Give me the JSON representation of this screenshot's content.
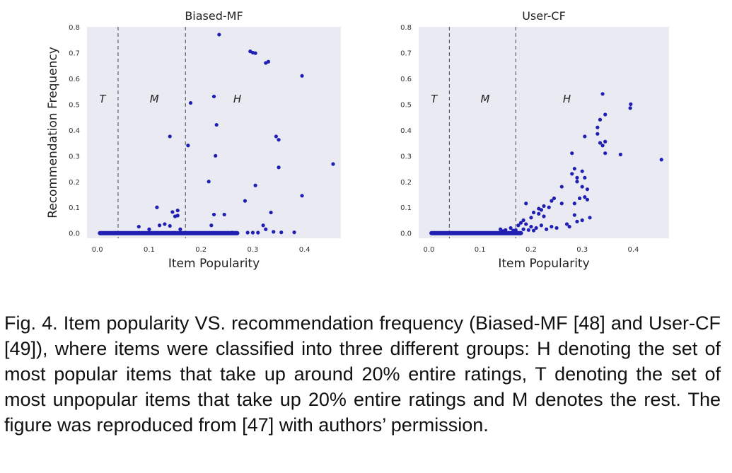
{
  "chart_data": [
    {
      "type": "scatter",
      "title": "Biased-MF",
      "xlabel": "Item Popularity",
      "ylabel": "Recommendation Frequency",
      "xlim": [
        -0.02,
        0.47
      ],
      "ylim": [
        -0.02,
        0.8
      ],
      "xticks": [
        "0.0",
        "0.1",
        "0.2",
        "0.3",
        "0.4"
      ],
      "yticks": [
        "0.0",
        "0.1",
        "0.2",
        "0.3",
        "0.4",
        "0.5",
        "0.6",
        "0.7",
        "0.8"
      ],
      "grid": false,
      "dividers_x": [
        0.04,
        0.17
      ],
      "regions": [
        {
          "label": "T",
          "x": 0.01,
          "y": 0.52
        },
        {
          "label": "M",
          "x": 0.11,
          "y": 0.52
        },
        {
          "label": "H",
          "x": 0.27,
          "y": 0.52
        }
      ],
      "marker_color": "#1f1fb4",
      "points": [
        [
          0.235,
          0.77
        ],
        [
          0.295,
          0.705
        ],
        [
          0.3,
          0.7
        ],
        [
          0.305,
          0.698
        ],
        [
          0.325,
          0.66
        ],
        [
          0.33,
          0.665
        ],
        [
          0.395,
          0.61
        ],
        [
          0.18,
          0.505
        ],
        [
          0.225,
          0.53
        ],
        [
          0.23,
          0.42
        ],
        [
          0.14,
          0.375
        ],
        [
          0.345,
          0.375
        ],
        [
          0.35,
          0.362
        ],
        [
          0.175,
          0.34
        ],
        [
          0.228,
          0.3
        ],
        [
          0.455,
          0.268
        ],
        [
          0.35,
          0.255
        ],
        [
          0.215,
          0.2
        ],
        [
          0.305,
          0.185
        ],
        [
          0.395,
          0.145
        ],
        [
          0.285,
          0.125
        ],
        [
          0.115,
          0.1
        ],
        [
          0.145,
          0.082
        ],
        [
          0.155,
          0.088
        ],
        [
          0.15,
          0.065
        ],
        [
          0.155,
          0.068
        ],
        [
          0.225,
          0.072
        ],
        [
          0.245,
          0.072
        ],
        [
          0.335,
          0.08
        ],
        [
          0.22,
          0.03
        ],
        [
          0.32,
          0.03
        ],
        [
          0.08,
          0.025
        ],
        [
          0.12,
          0.03
        ],
        [
          0.13,
          0.035
        ],
        [
          0.14,
          0.028
        ],
        [
          0.1,
          0.015
        ],
        [
          0.16,
          0.015
        ],
        [
          0.325,
          0.015
        ],
        [
          0.34,
          0.005
        ],
        [
          0.355,
          0.003
        ],
        [
          0.38,
          0.003
        ],
        [
          0.26,
          0.002
        ],
        [
          0.29,
          0.002
        ],
        [
          0.3,
          0.002
        ],
        [
          0.31,
          0.002
        ]
      ],
      "baseline_run": [
        0.005,
        0.27,
        0.0
      ]
    },
    {
      "type": "scatter",
      "title": "User-CF",
      "xlabel": "Item Popularity",
      "ylabel": "",
      "xlim": [
        -0.02,
        0.47
      ],
      "ylim": [
        -0.02,
        0.8
      ],
      "xticks": [
        "0.0",
        "0.1",
        "0.2",
        "0.3",
        "0.4"
      ],
      "yticks": [
        "0.0",
        "0.1",
        "0.2",
        "0.3",
        "0.4",
        "0.5",
        "0.6",
        "0.7",
        "0.8"
      ],
      "grid": false,
      "dividers_x": [
        0.04,
        0.17
      ],
      "regions": [
        {
          "label": "T",
          "x": 0.01,
          "y": 0.52
        },
        {
          "label": "M",
          "x": 0.11,
          "y": 0.52
        },
        {
          "label": "H",
          "x": 0.27,
          "y": 0.52
        }
      ],
      "marker_color": "#1f1fb4",
      "points": [
        [
          0.34,
          0.54
        ],
        [
          0.395,
          0.5
        ],
        [
          0.394,
          0.485
        ],
        [
          0.345,
          0.46
        ],
        [
          0.335,
          0.44
        ],
        [
          0.33,
          0.41
        ],
        [
          0.305,
          0.375
        ],
        [
          0.33,
          0.385
        ],
        [
          0.345,
          0.355
        ],
        [
          0.335,
          0.35
        ],
        [
          0.34,
          0.34
        ],
        [
          0.345,
          0.31
        ],
        [
          0.28,
          0.31
        ],
        [
          0.375,
          0.305
        ],
        [
          0.455,
          0.285
        ],
        [
          0.285,
          0.25
        ],
        [
          0.3,
          0.24
        ],
        [
          0.28,
          0.23
        ],
        [
          0.305,
          0.215
        ],
        [
          0.29,
          0.215
        ],
        [
          0.29,
          0.2
        ],
        [
          0.26,
          0.18
        ],
        [
          0.3,
          0.18
        ],
        [
          0.31,
          0.17
        ],
        [
          0.305,
          0.14
        ],
        [
          0.295,
          0.135
        ],
        [
          0.245,
          0.135
        ],
        [
          0.24,
          0.125
        ],
        [
          0.26,
          0.115
        ],
        [
          0.19,
          0.115
        ],
        [
          0.31,
          0.13
        ],
        [
          0.285,
          0.115
        ],
        [
          0.225,
          0.105
        ],
        [
          0.235,
          0.1
        ],
        [
          0.215,
          0.095
        ],
        [
          0.22,
          0.09
        ],
        [
          0.205,
          0.08
        ],
        [
          0.215,
          0.075
        ],
        [
          0.2,
          0.06
        ],
        [
          0.225,
          0.065
        ],
        [
          0.285,
          0.07
        ],
        [
          0.315,
          0.06
        ],
        [
          0.3,
          0.05
        ],
        [
          0.29,
          0.045
        ],
        [
          0.27,
          0.035
        ],
        [
          0.275,
          0.025
        ],
        [
          0.185,
          0.05
        ],
        [
          0.19,
          0.035
        ],
        [
          0.18,
          0.04
        ],
        [
          0.175,
          0.03
        ],
        [
          0.16,
          0.02
        ],
        [
          0.2,
          0.025
        ],
        [
          0.21,
          0.02
        ],
        [
          0.22,
          0.03
        ],
        [
          0.23,
          0.015
        ],
        [
          0.24,
          0.025
        ],
        [
          0.25,
          0.02
        ],
        [
          0.17,
          0.012
        ],
        [
          0.185,
          0.015
        ],
        [
          0.195,
          0.012
        ],
        [
          0.205,
          0.01
        ],
        [
          0.165,
          0.01
        ],
        [
          0.15,
          0.012
        ],
        [
          0.14,
          0.015
        ],
        [
          0.145,
          0.008
        ]
      ],
      "baseline_run": [
        0.005,
        0.18,
        0.0
      ]
    }
  ],
  "caption": "Fig. 4. Item popularity VS. recommendation frequency (Biased-MF [48] and User-CF [49]), where items were classified into three different groups: H denoting the set of most popular items that take up around 20% entire ratings, T denoting the set of most unpopular items that take up 20% entire ratings and M denotes the rest. The figure was reproduced from  [47] with authors’ permission."
}
